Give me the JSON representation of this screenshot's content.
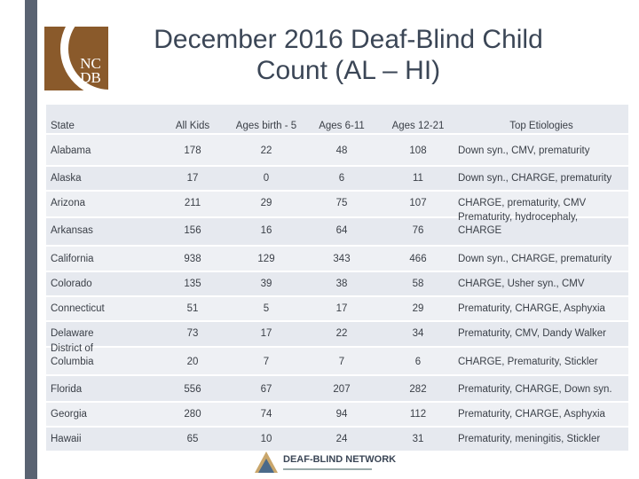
{
  "header": {
    "title": "December 2016 Deaf-Blind Child Count (AL – HI)",
    "logo": {
      "line1": "NC",
      "line2": "DB"
    }
  },
  "table": {
    "columns": [
      "State",
      "All Kids",
      "Ages birth - 5",
      "Ages 6-11",
      "Ages 12-21",
      "Top Etiologies"
    ],
    "rows": [
      [
        "Alabama",
        178,
        22,
        48,
        108,
        "Down syn., CMV, prematurity"
      ],
      [
        "Alaska",
        17,
        0,
        6,
        11,
        "Down syn., CHARGE, prematurity"
      ],
      [
        "Arizona",
        211,
        29,
        75,
        107,
        "CHARGE, prematurity, CMV"
      ],
      [
        "Arkansas",
        156,
        16,
        64,
        76,
        "Prematurity, hydrocephaly, CHARGE"
      ],
      [
        "California",
        938,
        129,
        343,
        466,
        "Down syn., CHARGE, prematurity"
      ],
      [
        "Colorado",
        135,
        39,
        38,
        58,
        "CHARGE, Usher syn., CMV"
      ],
      [
        "Connecticut",
        51,
        5,
        17,
        29,
        "Prematurity, CHARGE, Asphyxia"
      ],
      [
        "Delaware",
        73,
        17,
        22,
        34,
        "Prematurity, CMV, Dandy Walker"
      ],
      [
        "District of Columbia",
        20,
        7,
        7,
        6,
        "CHARGE, Prematurity, Stickler"
      ],
      [
        "Florida",
        556,
        67,
        207,
        282,
        "Prematurity, CHARGE, Down syn."
      ],
      [
        "Georgia",
        280,
        74,
        94,
        112,
        "Prematurity, CHARGE, Asphyxia"
      ],
      [
        "Hawaii",
        65,
        10,
        24,
        31,
        "Prematurity, meningitis, Stickler"
      ]
    ]
  },
  "footer": {
    "logo_text": "DEAF-BLIND NETWORK"
  }
}
